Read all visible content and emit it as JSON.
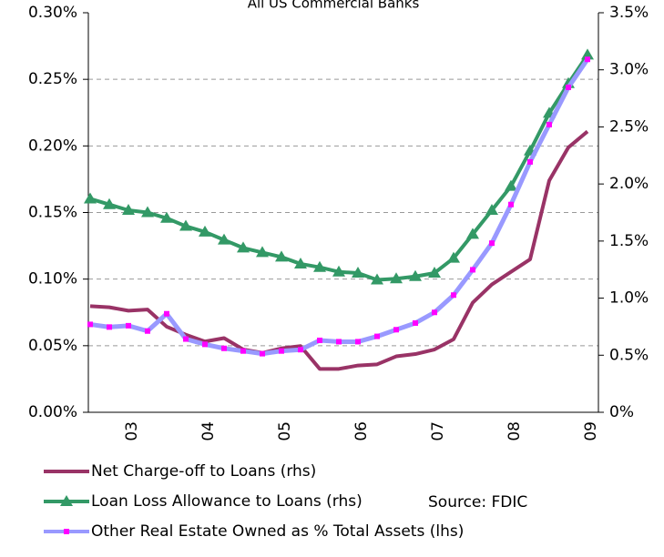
{
  "chart_data": {
    "type": "line",
    "title": "All US Commercial Banks",
    "annotation": "Source: FDIC",
    "categories": [
      null,
      null,
      "03",
      null,
      null,
      null,
      "04",
      null,
      null,
      null,
      "05",
      null,
      null,
      null,
      "06",
      null,
      null,
      null,
      "07",
      null,
      null,
      null,
      "08",
      null,
      null,
      null,
      "09"
    ],
    "series": [
      {
        "name": "Net Charge-off to Loans (rhs)",
        "color": "#993366",
        "axis": "y2",
        "marker": "none",
        "values": [
          0.93,
          0.92,
          0.89,
          0.9,
          0.75,
          0.68,
          0.62,
          0.65,
          0.55,
          0.52,
          0.56,
          0.58,
          0.38,
          0.38,
          0.41,
          0.42,
          0.49,
          0.51,
          0.55,
          0.64,
          0.96,
          1.12,
          1.23,
          1.34,
          2.03,
          2.32,
          2.46
        ]
      },
      {
        "name": "Loan Loss Allowance to Loans (rhs)",
        "color": "#339966",
        "axis": "y2",
        "marker": "triangle",
        "values": [
          1.87,
          1.82,
          1.77,
          1.75,
          1.7,
          1.63,
          1.58,
          1.51,
          1.44,
          1.4,
          1.36,
          1.3,
          1.27,
          1.23,
          1.22,
          1.16,
          1.17,
          1.19,
          1.22,
          1.35,
          1.56,
          1.77,
          1.98,
          2.29,
          2.62,
          2.88,
          3.13
        ]
      },
      {
        "name": "Other Real Estate Owned as % Total Assets (lhs)",
        "color": "#9999ff",
        "marker_color": "#ff00ff",
        "axis": "y",
        "marker": "square",
        "values": [
          0.066,
          0.064,
          0.065,
          0.061,
          0.074,
          0.055,
          0.051,
          0.048,
          0.046,
          0.044,
          0.046,
          0.047,
          0.054,
          0.053,
          0.053,
          0.057,
          0.062,
          0.067,
          0.075,
          0.088,
          0.107,
          0.127,
          0.156,
          0.188,
          0.216,
          0.244,
          0.265
        ]
      }
    ],
    "ylim": [
      0,
      0.3
    ],
    "yticks": [
      {
        "value": 0,
        "label": "0.00%"
      },
      {
        "value": 0.05,
        "label": "0.05%"
      },
      {
        "value": 0.1,
        "label": "0.10%"
      },
      {
        "value": 0.15,
        "label": "0.15%"
      },
      {
        "value": 0.2,
        "label": "0.20%"
      },
      {
        "value": 0.25,
        "label": "0.25%"
      },
      {
        "value": 0.3,
        "label": "0.30%"
      }
    ],
    "y2lim": [
      0,
      3.5
    ],
    "y2ticks": [
      {
        "value": 0,
        "label": "0%"
      },
      {
        "value": 0.5,
        "label": "0.5%"
      },
      {
        "value": 1,
        "label": "1.0%"
      },
      {
        "value": 1.5,
        "label": "1.5%"
      },
      {
        "value": 2,
        "label": "2.0%"
      },
      {
        "value": 2.5,
        "label": "2.5%"
      },
      {
        "value": 3,
        "label": "3.0%"
      },
      {
        "value": 3.5,
        "label": "3.5%"
      }
    ],
    "grid": true
  }
}
